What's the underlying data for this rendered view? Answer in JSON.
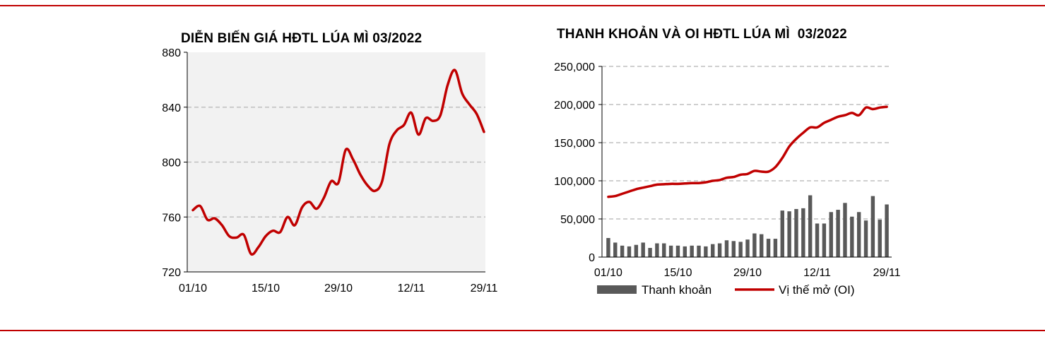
{
  "colors": {
    "rule": "#c00000",
    "line": "#c00000",
    "bar": "#595959",
    "grid": "#bfbfbf",
    "plot_bg": "#f2f2f2"
  },
  "chart_data": [
    {
      "type": "line",
      "title": "DIỄN BIẾN GIÁ HĐTL LÚA MÌ 03/2022",
      "ylim": [
        720,
        880
      ],
      "yticks": [
        "720",
        "760",
        "800",
        "840",
        "880"
      ],
      "xtick_labels": [
        "01/10",
        "15/10",
        "29/10",
        "12/11",
        "29/11"
      ],
      "grid": "horizontal dashed",
      "x": [
        "01/10",
        "04/10",
        "05/10",
        "06/10",
        "07/10",
        "08/10",
        "11/10",
        "12/10",
        "13/10",
        "14/10",
        "15/10",
        "18/10",
        "19/10",
        "20/10",
        "21/10",
        "22/10",
        "25/10",
        "26/10",
        "27/10",
        "28/10",
        "29/10",
        "01/11",
        "02/11",
        "03/11",
        "04/11",
        "05/11",
        "08/11",
        "09/11",
        "10/11",
        "11/11",
        "12/11",
        "15/11",
        "16/11",
        "17/11",
        "18/11",
        "19/11",
        "22/11",
        "23/11",
        "24/11",
        "26/11",
        "29/11"
      ],
      "values": [
        765,
        768,
        758,
        759,
        754,
        746,
        745,
        747,
        733,
        738,
        746,
        750,
        749,
        760,
        754,
        767,
        771,
        766,
        774,
        786,
        785,
        809,
        802,
        791,
        783,
        779,
        786,
        813,
        823,
        827,
        836,
        820,
        832,
        830,
        834,
        856,
        867,
        850,
        842,
        835,
        822
      ]
    },
    {
      "type": "bar+line",
      "title": "THANH KHOẢN VÀ OI HĐTL LÚA MÌ  03/2022",
      "ylim": [
        0,
        250000
      ],
      "yticks": [
        "0",
        "50,000",
        "100,000",
        "150,000",
        "200,000",
        "250,000"
      ],
      "xtick_labels": [
        "01/10",
        "15/10",
        "29/10",
        "12/11",
        "29/11"
      ],
      "legend_position": "bottom",
      "series": [
        {
          "name": "Thanh khoản",
          "type": "bar",
          "values": [
            25000,
            19000,
            15000,
            14000,
            16000,
            19000,
            12000,
            18000,
            18000,
            15000,
            15000,
            14000,
            15000,
            15000,
            14000,
            17000,
            18000,
            22000,
            21000,
            20000,
            23000,
            31000,
            30000,
            24000,
            24000,
            61000,
            60000,
            63000,
            64000,
            81000,
            44000,
            44000,
            59000,
            62000,
            71000,
            53000,
            59000,
            48000,
            80000,
            49000,
            69000
          ]
        },
        {
          "name": "Vị thế mở (OI)",
          "type": "line",
          "values": [
            79000,
            80000,
            83000,
            86000,
            89000,
            91000,
            93000,
            95000,
            95500,
            96000,
            96000,
            96500,
            97000,
            97000,
            98000,
            100000,
            101000,
            104000,
            105000,
            108000,
            109000,
            113000,
            112000,
            112000,
            118000,
            130000,
            145000,
            155000,
            163000,
            170000,
            170000,
            176000,
            180000,
            184000,
            186000,
            189000,
            186000,
            196000,
            194000,
            196000,
            197000
          ]
        }
      ]
    }
  ]
}
